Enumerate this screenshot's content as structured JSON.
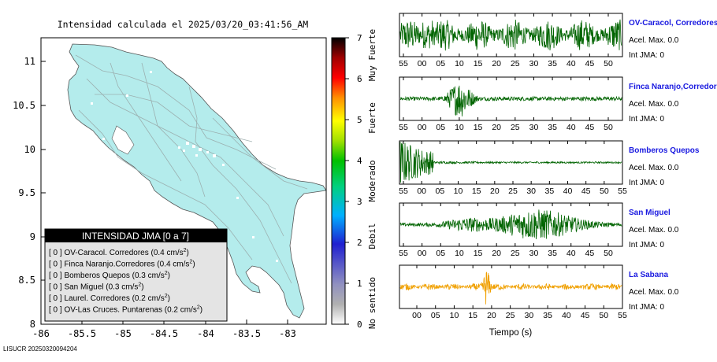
{
  "header": {
    "title": "Intensidad calculada el 2025/03/20_03:41:56_AM"
  },
  "footer": {
    "id_text": "LISUCR 20250320094204"
  },
  "map": {
    "xticks": [
      "-86",
      "-85.5",
      "-85",
      "-84.5",
      "-84",
      "-83.5",
      "-83"
    ],
    "yticks": [
      "11",
      "10.5",
      "10",
      "9.5",
      "9",
      "8.5",
      "8"
    ],
    "land_color": "#b4ecec",
    "legend": {
      "title": "INTENSIDAD JMA [0 a 7]",
      "items": [
        {
          "text": "[ 0 ]  OV-Caracol. Corredores (0.4 cm/s",
          "sup": "2",
          "tail": ")"
        },
        {
          "text": "[ 0 ]  Finca Naranjo.Corredores (0.4 cm/s",
          "sup": "2",
          "tail": ")"
        },
        {
          "text": "[ 0 ]  Bomberos Quepos (0.3 cm/s",
          "sup": "2",
          "tail": ")"
        },
        {
          "text": "[ 0 ]  San Miguel (0.3 cm/s",
          "sup": "2",
          "tail": ")"
        },
        {
          "text": "[ 0 ]  Laurel. Corredores (0.2 cm/s",
          "sup": "2",
          "tail": ")"
        },
        {
          "text": "[ 0 ]  OV-Las Cruces. Puntarenas (0.2 cm/s",
          "sup": "2",
          "tail": ")"
        }
      ]
    }
  },
  "colorbar": {
    "ticks": [
      "0",
      "1",
      "2",
      "3",
      "4",
      "5",
      "6",
      "7"
    ],
    "labels": [
      "No sentido",
      "Debil",
      "Moderado",
      "Fuerte",
      "Muy Fuerte"
    ],
    "colors": [
      "#ffffff",
      "#8a8a8a",
      "#3030d0",
      "#00c8ff",
      "#00c000",
      "#ffff00",
      "#ff8000",
      "#ff0000",
      "#000000"
    ]
  },
  "chart_data": [
    {
      "type": "line",
      "station": "OV-Caracol, Corredores",
      "acel_label": "Acel. Max. 0.0",
      "int_label": "Int JMA: 0",
      "color": "#006400",
      "pattern": "continuous",
      "x_ticks": [
        "55",
        "00",
        "05",
        "10",
        "15",
        "20",
        "25",
        "30",
        "35",
        "40",
        "45",
        "50"
      ]
    },
    {
      "type": "line",
      "station": "Finca Naranjo,Corredores",
      "acel_label": "Acel. Max. 0.0",
      "int_label": "Int JMA: 0",
      "color": "#006400",
      "pattern": "burst",
      "x_ticks": [
        "55",
        "00",
        "05",
        "10",
        "15",
        "20",
        "25",
        "30",
        "35",
        "40",
        "45",
        "50"
      ]
    },
    {
      "type": "line",
      "station": "Bomberos Quepos",
      "acel_label": "Acel. Max. 0.0",
      "int_label": "Int JMA: 0",
      "color": "#006400",
      "pattern": "early",
      "x_ticks": [
        "55",
        "00",
        "05",
        "10",
        "15",
        "20",
        "25",
        "30",
        "35",
        "40",
        "45",
        "50",
        "55"
      ]
    },
    {
      "type": "line",
      "station": "San Miguel",
      "acel_label": "Acel. Max. 0.0",
      "int_label": "Int JMA: 0",
      "color": "#006400",
      "pattern": "late",
      "x_ticks": [
        "55",
        "00",
        "05",
        "10",
        "15",
        "20",
        "25",
        "30",
        "35",
        "40",
        "45",
        "50"
      ]
    },
    {
      "type": "line",
      "station": "La Sabana",
      "acel_label": "Acel. Max. 0.0",
      "int_label": "Int JMA: 0",
      "color": "#f0a000",
      "pattern": "spike",
      "x_ticks": [
        "00",
        "05",
        "10",
        "15",
        "20",
        "25",
        "30",
        "35",
        "40",
        "45",
        "50",
        "55"
      ],
      "xlabel": "Tiempo (s)"
    }
  ]
}
